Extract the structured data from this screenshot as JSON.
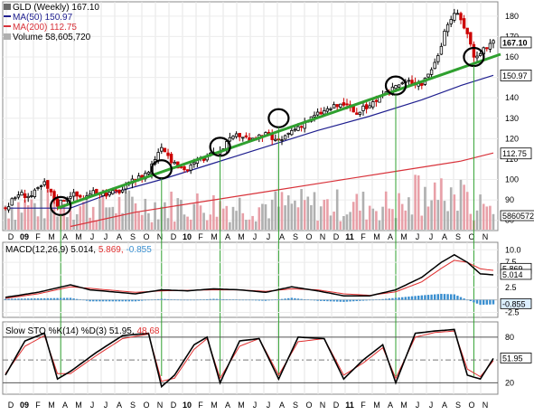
{
  "header": {
    "symbol": "GLD",
    "period": "(Weekly)",
    "last": "167.10",
    "ma50_label": "MA(50)",
    "ma50_value": "150.97",
    "ma200_label": "MA(200)",
    "ma200_value": "112.75",
    "volume_label": "Volume",
    "volume_value": "58,605,720"
  },
  "colors": {
    "up": "#000000",
    "down": "#cc0000",
    "ma50": "#1f1f8f",
    "ma200": "#d8323a",
    "trendline": "#2fa02f",
    "marker_lines": "#2fa02f",
    "volume_up": "#b0b0b0",
    "volume_down": "#e8a0a8",
    "macd_line": "#000000",
    "signal_line": "#e03030",
    "histogram": "#3a8fd0",
    "sto_k": "#000000",
    "sto_d": "#e03030"
  },
  "chart_data": [
    {
      "type": "candlestick",
      "title": "GLD (Weekly) 167.10",
      "ylim": [
        82,
        185
      ],
      "y_ticks": [
        80,
        90,
        100,
        110,
        120,
        130,
        140,
        150,
        160,
        170,
        180
      ],
      "price_tags": [
        "167.10",
        "150.97",
        "112.75"
      ],
      "volume_tag": "58605720",
      "x_labels": [
        "D",
        "09",
        "F",
        "M",
        "A",
        "M",
        "J",
        "J",
        "A",
        "S",
        "O",
        "N",
        "D",
        "10",
        "F",
        "M",
        "A",
        "M",
        "J",
        "J",
        "A",
        "S",
        "O",
        "N",
        "D",
        "11",
        "F",
        "M",
        "A",
        "M",
        "J",
        "J",
        "A",
        "S",
        "O",
        "N"
      ],
      "bold_labels": [
        "09",
        "10",
        "11"
      ],
      "price_path": [
        [
          0,
          86
        ],
        [
          4,
          93
        ],
        [
          8,
          92
        ],
        [
          12,
          98
        ],
        [
          16,
          88
        ],
        [
          20,
          93
        ],
        [
          24,
          91
        ],
        [
          28,
          94
        ],
        [
          32,
          93
        ],
        [
          36,
          95
        ],
        [
          40,
          100
        ],
        [
          44,
          104
        ],
        [
          48,
          117
        ],
        [
          52,
          107
        ],
        [
          56,
          105
        ],
        [
          60,
          110
        ],
        [
          64,
          112
        ],
        [
          68,
          118
        ],
        [
          72,
          122
        ],
        [
          76,
          119
        ],
        [
          80,
          122
        ],
        [
          84,
          118
        ],
        [
          88,
          124
        ],
        [
          92,
          128
        ],
        [
          96,
          132
        ],
        [
          100,
          135
        ],
        [
          104,
          137
        ],
        [
          108,
          132
        ],
        [
          112,
          137
        ],
        [
          116,
          140
        ],
        [
          120,
          146
        ],
        [
          124,
          148
        ],
        [
          128,
          147
        ],
        [
          132,
          157
        ],
        [
          136,
          176
        ],
        [
          138,
          182
        ],
        [
          140,
          178
        ],
        [
          142,
          172
        ],
        [
          144,
          160
        ],
        [
          146,
          163
        ],
        [
          148,
          165
        ],
        [
          150,
          168
        ]
      ],
      "series": [
        {
          "name": "MA(50)",
          "values": [
            [
              0,
              86
            ],
            [
              20,
              86
            ],
            [
              32,
              93
            ],
            [
              48,
              100
            ],
            [
              64,
              108
            ],
            [
              80,
              116
            ],
            [
              96,
              124
            ],
            [
              112,
              131
            ],
            [
              128,
              139
            ],
            [
              140,
              146
            ],
            [
              150,
              151
            ]
          ]
        },
        {
          "name": "MA(200)",
          "values": [
            [
              20,
              77
            ],
            [
              40,
              84
            ],
            [
              60,
              89
            ],
            [
              80,
              94
            ],
            [
              100,
              99
            ],
            [
              120,
              104
            ],
            [
              140,
              109
            ],
            [
              150,
              113
            ]
          ]
        }
      ],
      "trendline": [
        [
          16,
          86
        ],
        [
          150,
          160
        ]
      ],
      "touch_points": [
        [
          17,
          87
        ],
        [
          48,
          105
        ],
        [
          66,
          116
        ],
        [
          84,
          130
        ],
        [
          120,
          146
        ],
        [
          144,
          160
        ]
      ]
    },
    {
      "type": "line",
      "title": "MACD(12,26,9)",
      "values_text": [
        "5.014",
        "5.869",
        "-0.855"
      ],
      "ylim": [
        -2.5,
        10.0
      ],
      "y_ticks": [
        "10.0",
        "7.5",
        "5.0",
        "2.5",
        "-2.5"
      ],
      "tags": [
        "5.869",
        "5.014",
        "-0.855"
      ],
      "series": [
        {
          "name": "MACD",
          "values": [
            [
              0,
              0.5
            ],
            [
              10,
              1.5
            ],
            [
              20,
              3.0
            ],
            [
              26,
              2.0
            ],
            [
              40,
              1.2
            ],
            [
              48,
              2.0
            ],
            [
              56,
              1.8
            ],
            [
              64,
              2.2
            ],
            [
              72,
              2.0
            ],
            [
              80,
              1.5
            ],
            [
              88,
              2.6
            ],
            [
              96,
              1.8
            ],
            [
              104,
              0.8
            ],
            [
              112,
              0.8
            ],
            [
              120,
              2.0
            ],
            [
              128,
              4.5
            ],
            [
              134,
              7.5
            ],
            [
              138,
              9.0
            ],
            [
              142,
              7.5
            ],
            [
              146,
              5.2
            ],
            [
              150,
              5.0
            ]
          ]
        },
        {
          "name": "Signal",
          "values": [
            [
              0,
              0.3
            ],
            [
              10,
              1.2
            ],
            [
              20,
              2.6
            ],
            [
              26,
              2.3
            ],
            [
              40,
              1.5
            ],
            [
              48,
              1.8
            ],
            [
              56,
              1.9
            ],
            [
              64,
              2.0
            ],
            [
              72,
              2.0
            ],
            [
              80,
              1.7
            ],
            [
              88,
              2.2
            ],
            [
              96,
              2.0
            ],
            [
              104,
              1.2
            ],
            [
              112,
              0.9
            ],
            [
              120,
              1.6
            ],
            [
              128,
              3.6
            ],
            [
              134,
              6.3
            ],
            [
              138,
              7.9
            ],
            [
              142,
              7.5
            ],
            [
              146,
              6.2
            ],
            [
              150,
              5.9
            ]
          ]
        },
        {
          "name": "Histogram",
          "values": [
            [
              0,
              0.2
            ],
            [
              10,
              0.3
            ],
            [
              20,
              0.4
            ],
            [
              26,
              -0.3
            ],
            [
              40,
              -0.3
            ],
            [
              48,
              0.2
            ],
            [
              56,
              -0.1
            ],
            [
              64,
              0.2
            ],
            [
              72,
              0.0
            ],
            [
              80,
              -0.2
            ],
            [
              88,
              0.4
            ],
            [
              96,
              -0.2
            ],
            [
              104,
              -0.4
            ],
            [
              112,
              -0.1
            ],
            [
              120,
              0.4
            ],
            [
              128,
              0.9
            ],
            [
              134,
              1.2
            ],
            [
              138,
              1.1
            ],
            [
              142,
              0.0
            ],
            [
              146,
              -1.0
            ],
            [
              150,
              -0.9
            ]
          ]
        }
      ]
    },
    {
      "type": "line",
      "title": "Slow STO %K(14) %D(3)",
      "values_text": [
        "51.95",
        "48.68"
      ],
      "ylim": [
        0,
        100
      ],
      "y_ticks": [
        "80",
        "50",
        "20"
      ],
      "tags": [
        "51.95"
      ],
      "series": [
        {
          "name": "%K",
          "values": [
            [
              0,
              30
            ],
            [
              6,
              75
            ],
            [
              12,
              85
            ],
            [
              16,
              25
            ],
            [
              20,
              35
            ],
            [
              28,
              60
            ],
            [
              36,
              82
            ],
            [
              44,
              85
            ],
            [
              48,
              15
            ],
            [
              52,
              30
            ],
            [
              58,
              70
            ],
            [
              62,
              80
            ],
            [
              66,
              20
            ],
            [
              72,
              75
            ],
            [
              78,
              78
            ],
            [
              84,
              25
            ],
            [
              90,
              80
            ],
            [
              98,
              78
            ],
            [
              104,
              25
            ],
            [
              110,
              50
            ],
            [
              116,
              70
            ],
            [
              120,
              20
            ],
            [
              126,
              85
            ],
            [
              132,
              88
            ],
            [
              138,
              90
            ],
            [
              142,
              30
            ],
            [
              146,
              25
            ],
            [
              150,
              52
            ]
          ]
        },
        {
          "name": "%D",
          "values": [
            [
              0,
              32
            ],
            [
              6,
              68
            ],
            [
              12,
              82
            ],
            [
              16,
              32
            ],
            [
              20,
              32
            ],
            [
              28,
              56
            ],
            [
              36,
              78
            ],
            [
              44,
              84
            ],
            [
              48,
              22
            ],
            [
              52,
              26
            ],
            [
              58,
              64
            ],
            [
              62,
              78
            ],
            [
              66,
              26
            ],
            [
              72,
              68
            ],
            [
              78,
              78
            ],
            [
              84,
              30
            ],
            [
              90,
              74
            ],
            [
              98,
              78
            ],
            [
              104,
              30
            ],
            [
              110,
              46
            ],
            [
              116,
              66
            ],
            [
              120,
              26
            ],
            [
              126,
              80
            ],
            [
              132,
              86
            ],
            [
              138,
              88
            ],
            [
              142,
              38
            ],
            [
              146,
              28
            ],
            [
              150,
              49
            ]
          ]
        }
      ]
    }
  ]
}
